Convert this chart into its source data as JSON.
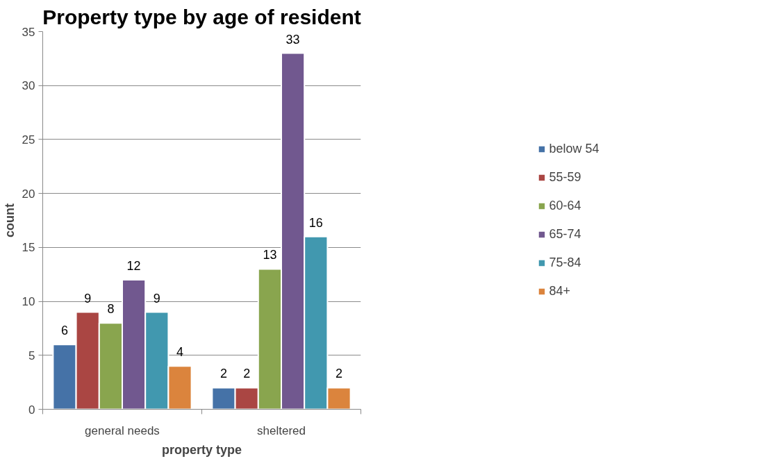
{
  "chart_data": {
    "type": "bar",
    "title": "Property type by age of resident",
    "xlabel": "property type",
    "ylabel": "count",
    "categories": [
      "general needs",
      "sheltered"
    ],
    "series": [
      {
        "name": "below 54",
        "color": "#4572a7",
        "values": [
          6,
          2
        ]
      },
      {
        "name": "55-59",
        "color": "#aa4643",
        "values": [
          9,
          2
        ]
      },
      {
        "name": "60-64",
        "color": "#89a54e",
        "values": [
          8,
          13
        ]
      },
      {
        "name": "65-74",
        "color": "#71588f",
        "values": [
          12,
          33
        ]
      },
      {
        "name": "75-84",
        "color": "#4198af",
        "values": [
          9,
          16
        ]
      },
      {
        "name": "84+",
        "color": "#db843d",
        "values": [
          4,
          2
        ]
      }
    ],
    "ylim": [
      0,
      35
    ],
    "yticks": [
      0,
      5,
      10,
      15,
      20,
      25,
      30,
      35
    ],
    "grid": "y",
    "legend": "right",
    "data_labels": true
  }
}
